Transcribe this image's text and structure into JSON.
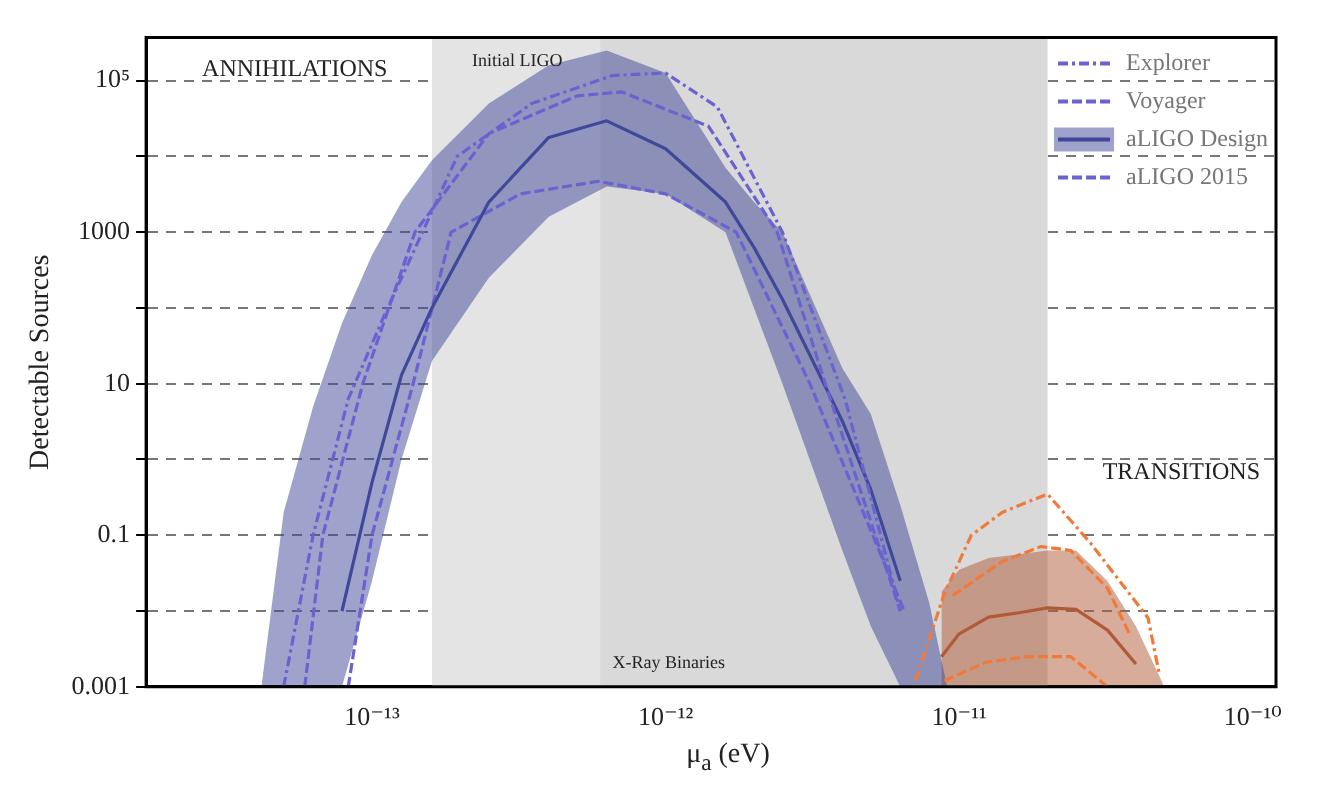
{
  "chart_data": {
    "type": "line",
    "xlabel": "μ$_{a}$ (eV)",
    "ylabel": "Detectable Sources",
    "log": "xy",
    "grid": "y",
    "legend": "top right",
    "marker": "none",
    "xlim": [
      1.7e-14,
      1.2e-10
    ],
    "xticks": [
      {
        "value": 1e-13,
        "label": "10⁻¹³"
      },
      {
        "value": 1e-12,
        "label": "10⁻¹²"
      },
      {
        "value": 1e-11,
        "label": "10⁻¹¹"
      },
      {
        "value": 1e-10,
        "label": "10⁻¹⁰"
      }
    ],
    "ylim": [
      0.001,
      370000
    ],
    "yticks": [
      0.001,
      {
        "value": 0.01,
        "label": null
      },
      0.1,
      {
        "value": 1,
        "label": null
      },
      10,
      {
        "value": 100,
        "label": null
      },
      1000,
      {
        "value": 10000,
        "label": null
      },
      {
        "value": 100000,
        "label": "10⁵"
      }
    ],
    "bands": [
      {
        "axis": "x",
        "from": 1.6e-13,
        "to": 1.5e-12,
        "label": "Initial LIGO",
        "color": "#e4e4e4"
      },
      {
        "axis": "x",
        "from": 6e-13,
        "to": 2e-11,
        "label": "X-Ray Binaries",
        "color": "#d9d9d9"
      }
    ],
    "annotations": [
      "ANNIHILATIONS",
      "TRANSITIONS"
    ],
    "series": [
      {
        "name": "Explorer",
        "color": "#6a62d0",
        "line_style": "dashdot",
        "x": [
          5e-14,
          6.3e-14,
          8.3e-14,
          1.1e-13,
          1.95e-13,
          3.5e-13,
          6.6e-13,
          1e-12,
          1.5e-12,
          2.5e-12,
          4.1e-12,
          6.3e-12
        ],
        "values": [
          0.001,
          0.1,
          6.3,
          79,
          10000,
          50000,
          117000,
          126000,
          45000,
          1000,
          6,
          0.01
        ]
      },
      {
        "name": "Voyager",
        "color": "#6a62d0",
        "line_style": "dashed",
        "x": [
          5.9e-14,
          6.8e-14,
          9.3e-14,
          1.4e-13,
          2.5e-13,
          5e-13,
          7.1e-13,
          1.4e-12,
          2.4e-12,
          3.5e-12,
          6.3e-12
        ],
        "values": [
          0.001,
          0.1,
          10,
          1000,
          20000,
          63000,
          71000,
          25000,
          1000,
          10,
          0.01
        ]
      },
      {
        "name": "aLIGO Design",
        "color": "#40489a",
        "line_style": "solid",
        "x": [
          4.2e-14,
          5e-14,
          6.3e-14,
          7.9e-14,
          1e-13,
          1.26e-13,
          1.6e-13,
          2.5e-13,
          4e-13,
          6.3e-13,
          1e-12,
          1.6e-12,
          2e-12,
          2.5e-12,
          4e-12,
          5e-12,
          6.3e-12,
          7.9e-12,
          9.1e-12
        ],
        "values": [
          null,
          null,
          null,
          0.01,
          0.5,
          13,
          100,
          2500,
          17800,
          29500,
          12600,
          2500,
          630,
          130,
          3.2,
          0.4,
          0.025,
          null,
          null
        ],
        "lower": [
          0.001,
          0.001,
          0.001,
          0.001,
          0.025,
          1,
          20,
          250,
          1600,
          4000,
          3200,
          1000,
          100,
          10,
          0.063,
          0.0063,
          0.001,
          0.001,
          0.001
        ],
        "upper": [
          0.001,
          0.2,
          5,
          63,
          500,
          2500,
          8900,
          50000,
          160000,
          250000,
          126000,
          7100,
          2500,
          1000,
          16,
          4,
          0.25,
          0.013,
          0.001
        ]
      },
      {
        "name": "aLIGO 2015",
        "color": "#6a62d0",
        "line_style": "dashed",
        "x": [
          8.3e-14,
          1e-13,
          1.38e-13,
          1.86e-13,
          3.2e-13,
          5.9e-13,
          1e-12,
          1.74e-12,
          3.1e-12,
          6.5e-12
        ],
        "values": [
          0.001,
          0.1,
          10,
          1000,
          3200,
          4700,
          3200,
          1000,
          10,
          0.01
        ]
      },
      {
        "color": "#f07a3a",
        "line_style": "dashdot",
        "x": [
          7.1e-12,
          8.9e-12,
          1.1e-11,
          1.4e-11,
          2e-11,
          2.8e-11,
          4.4e-11,
          4.8e-11
        ],
        "values": [
          0.0012,
          0.017,
          0.1,
          0.2,
          0.35,
          0.079,
          0.0081,
          0.0015
        ]
      },
      {
        "color": "#f07a3a",
        "line_style": "dashed",
        "x": [
          9.5e-12,
          1.4e-11,
          1.9e-11,
          2.4e-11,
          3.2e-11,
          3.8e-11
        ],
        "values": [
          0.016,
          0.045,
          0.071,
          0.063,
          0.02,
          0.005
        ]
      },
      {
        "color": "#b05a38",
        "line_style": "solid",
        "x": [
          8.7e-12,
          1e-11,
          1.26e-11,
          1.6e-11,
          2e-11,
          2.5e-11,
          3.2e-11,
          4e-11,
          5e-11
        ],
        "values": [
          0.0025,
          0.005,
          0.0083,
          0.0095,
          0.011,
          0.0105,
          0.0056,
          0.002,
          null
        ],
        "lower": [
          0.001,
          0.001,
          0.001,
          0.001,
          0.001,
          0.001,
          0.001,
          0.001,
          0.001
        ],
        "upper": [
          0.018,
          0.035,
          0.05,
          0.056,
          0.063,
          0.063,
          0.025,
          0.0063,
          0.001
        ]
      },
      {
        "color": "#f07a3a",
        "line_style": "dashed",
        "x": [
          8.9e-12,
          1.23e-11,
          1.7e-11,
          2.4e-11,
          3.2e-11
        ],
        "values": [
          0.0012,
          0.0021,
          0.0025,
          0.0025,
          0.001
        ]
      }
    ]
  }
}
